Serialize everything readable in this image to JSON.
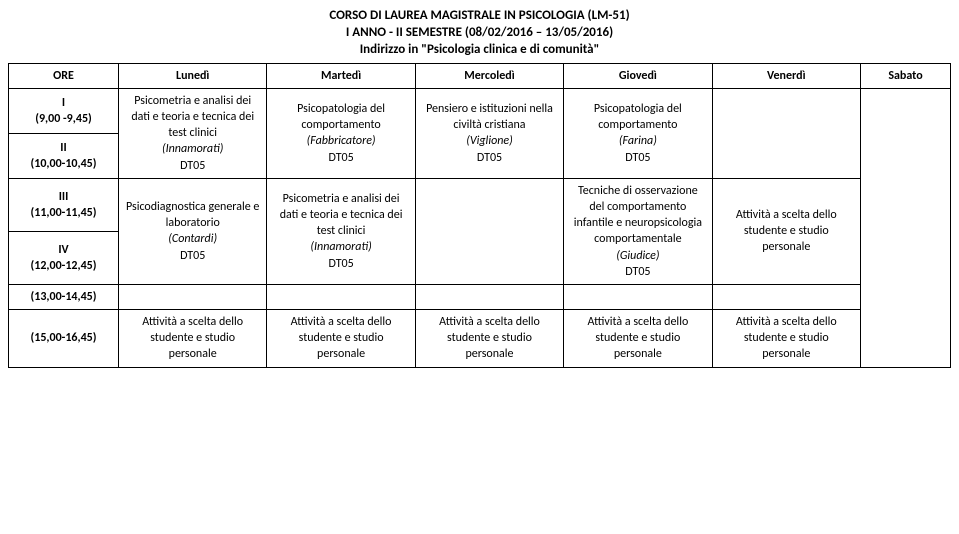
{
  "header": {
    "line1": "CORSO DI LAUREA MAGISTRALE IN PSICOLOGIA (LM-51)",
    "line2": "I ANNO - II SEMESTRE (08/02/2016 – 13/05/2016)",
    "line3": "Indirizzo in \"Psicologia clinica e di comunità\""
  },
  "cols": {
    "ore": "ORE",
    "lun": "Lunedì",
    "mar": "Martedì",
    "mer": "Mercoledì",
    "gio": "Giovedì",
    "ven": "Venerdì",
    "sab": "Sabato"
  },
  "rows": {
    "r1": {
      "label": "I\n(9,00 -9,45)"
    },
    "r2": {
      "label": "II\n(10,00-10,45)"
    },
    "r3": {
      "label": "III\n(11,00-11,45)"
    },
    "r4": {
      "label": "IV\n(12,00-12,45)"
    },
    "r5": {
      "label": "(13,00-14,45)"
    },
    "r6": {
      "label": "(15,00-16,45)"
    }
  },
  "cells": {
    "lun12": {
      "l1": "Psicometria e analisi dei dati e teoria e tecnica dei test clinici",
      "l2": "(Innamorati)",
      "l3": "DT05"
    },
    "mar12": {
      "l1": "Psicopatologia del comportamento",
      "l2": "(Fabbricatore)",
      "l3": "DT05"
    },
    "mer12": {
      "l1": "Pensiero e istituzioni nella civiltà cristiana",
      "l2": "(Viglione)",
      "l3": "DT05"
    },
    "gio12": {
      "l1": "Psicopatologia del comportamento",
      "l2": "(Farina)",
      "l3": "DT05"
    },
    "lun34": {
      "l1": "Psicodiagnostica generale e laboratorio",
      "l2": "(Contardi)",
      "l3": "DT05"
    },
    "mar34": {
      "l1": "Psicometria e analisi dei dati e teoria e tecnica dei test clinici",
      "l2": "(Innamorati)",
      "l3": "DT05"
    },
    "gio34": {
      "l1": "Tecniche di osservazione del comportamento infantile e neuropsicologia comportamentale",
      "l2": "(Giudice)",
      "l3": "DT05"
    },
    "sab34": {
      "l1": "Attività a scelta dello studente e studio personale"
    },
    "lun6": {
      "l1": "Attività a scelta dello studente e studio personale"
    },
    "mar6": {
      "l1": "Attività a scelta dello studente e studio personale"
    },
    "mer6": {
      "l1": "Attività a scelta dello studente e studio personale"
    },
    "gio6": {
      "l1": "Attività a scelta dello studente e studio personale"
    },
    "ven6": {
      "l1": "Attività a scelta dello studente e studio personale"
    }
  }
}
